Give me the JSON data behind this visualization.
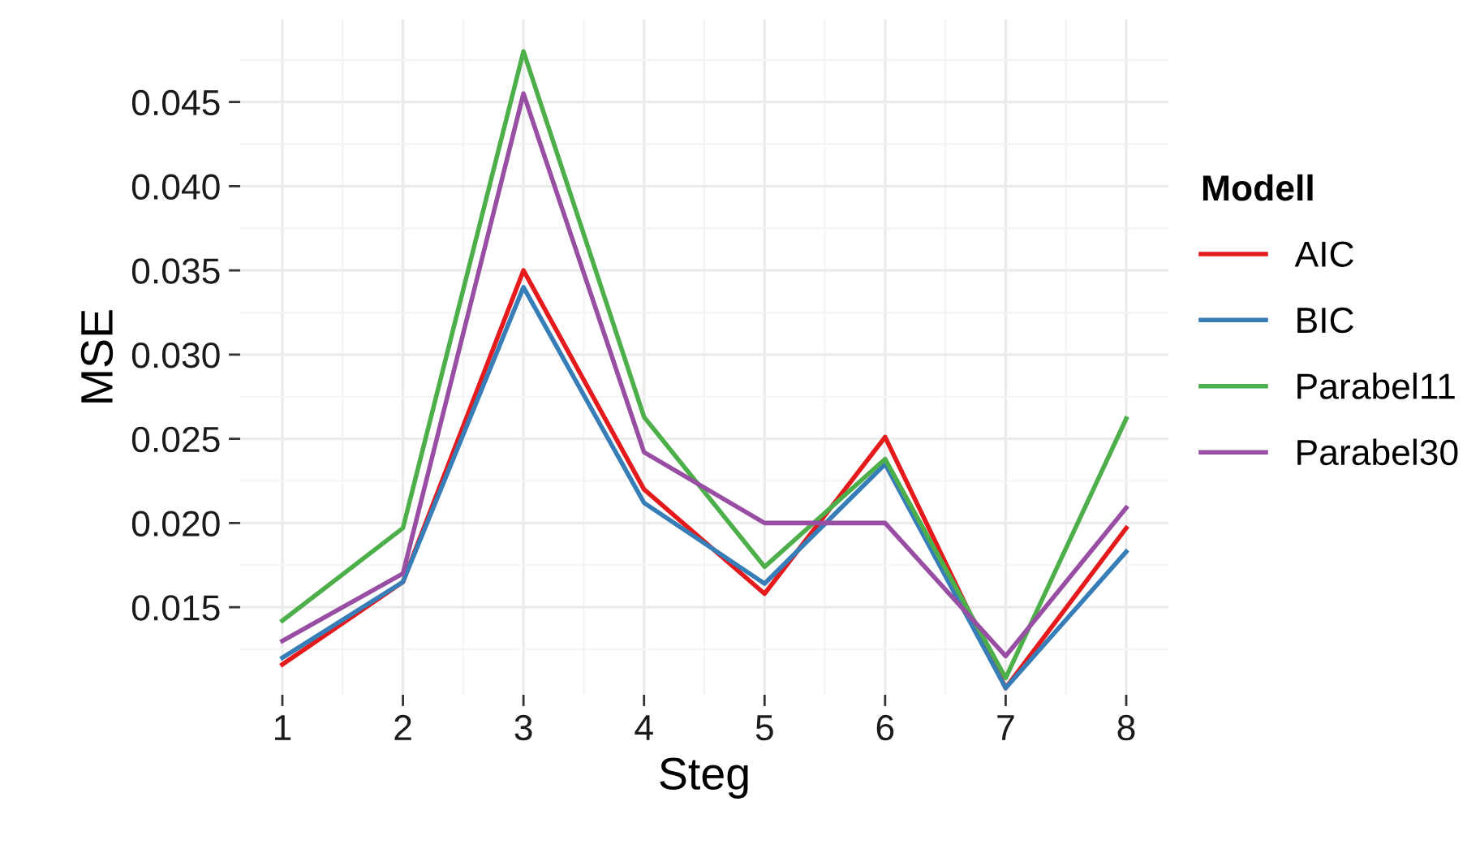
{
  "chart_data": {
    "type": "line",
    "xlabel": "Steg",
    "ylabel": "MSE",
    "legend_title": "Modell",
    "legend": "right",
    "grid": true,
    "x": [
      1,
      2,
      3,
      4,
      5,
      6,
      7,
      8
    ],
    "xlim": [
      0.65,
      8.35
    ],
    "xticks": [
      1,
      2,
      3,
      4,
      5,
      6,
      7,
      8
    ],
    "ylim": [
      0.0098,
      0.0499
    ],
    "yticks": [
      {
        "value": 0.015,
        "label": "0.015"
      },
      {
        "value": 0.02,
        "label": "0.020"
      },
      {
        "value": 0.025,
        "label": "0.025"
      },
      {
        "value": 0.03,
        "label": "0.030"
      },
      {
        "value": 0.035,
        "label": "0.035"
      },
      {
        "value": 0.04,
        "label": "0.040"
      },
      {
        "value": 0.045,
        "label": "0.045"
      }
    ],
    "series": [
      {
        "name": "AIC",
        "color": "#e41a1c",
        "values": [
          0.0116,
          0.0165,
          0.035,
          0.022,
          0.0158,
          0.0251,
          0.0102,
          0.0197
        ]
      },
      {
        "name": "BIC",
        "color": "#377eb8",
        "values": [
          0.012,
          0.0165,
          0.034,
          0.0212,
          0.0164,
          0.0235,
          0.0102,
          0.0183
        ]
      },
      {
        "name": "Parabel11",
        "color": "#4daf4a",
        "values": [
          0.0142,
          0.0197,
          0.048,
          0.0263,
          0.0174,
          0.0238,
          0.0108,
          0.0262
        ]
      },
      {
        "name": "Parabel30",
        "color": "#984ea3",
        "values": [
          0.013,
          0.017,
          0.0455,
          0.0242,
          0.02,
          0.02,
          0.0121,
          0.0209
        ]
      }
    ]
  }
}
